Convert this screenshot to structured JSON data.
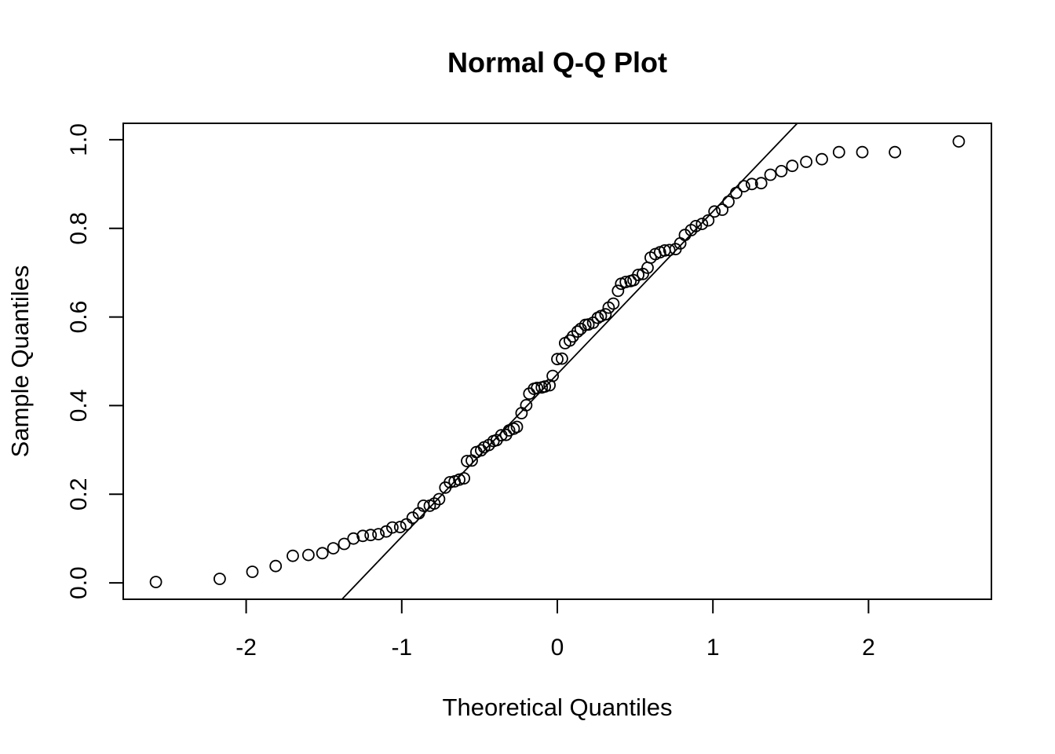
{
  "chart_data": {
    "type": "scatter",
    "title": "Normal Q-Q Plot",
    "xlabel": "Theoretical Quantiles",
    "ylabel": "Sample Quantiles",
    "xlim": [
      -2.79,
      2.79
    ],
    "ylim": [
      -0.037,
      1.037
    ],
    "x_ticks": [
      -2,
      -1,
      0,
      1,
      2
    ],
    "x_tick_labels": [
      "-2",
      "-1",
      "0",
      "1",
      "2"
    ],
    "y_ticks": [
      0.0,
      0.2,
      0.4,
      0.6,
      0.8,
      1.0
    ],
    "y_tick_labels": [
      "0.0",
      "0.2",
      "0.4",
      "0.6",
      "0.8",
      "1.0"
    ],
    "grid": false,
    "reference_line": {
      "intercept": 0.471,
      "slope": 0.367
    },
    "marker": "open-circle",
    "color": "#000000",
    "points": [
      [
        -2.58,
        0.002
      ],
      [
        -2.17,
        0.009
      ],
      [
        -1.96,
        0.025
      ],
      [
        -1.81,
        0.038
      ],
      [
        -1.7,
        0.061
      ],
      [
        -1.6,
        0.063
      ],
      [
        -1.51,
        0.067
      ],
      [
        -1.44,
        0.078
      ],
      [
        -1.37,
        0.088
      ],
      [
        -1.31,
        0.1
      ],
      [
        -1.25,
        0.106
      ],
      [
        -1.2,
        0.108
      ],
      [
        -1.15,
        0.11
      ],
      [
        -1.1,
        0.116
      ],
      [
        -1.06,
        0.125
      ],
      [
        -1.01,
        0.126
      ],
      [
        -0.97,
        0.132
      ],
      [
        -0.93,
        0.147
      ],
      [
        -0.89,
        0.157
      ],
      [
        -0.86,
        0.174
      ],
      [
        -0.82,
        0.174
      ],
      [
        -0.79,
        0.179
      ],
      [
        -0.76,
        0.189
      ],
      [
        -0.72,
        0.215
      ],
      [
        -0.69,
        0.227
      ],
      [
        -0.66,
        0.229
      ],
      [
        -0.63,
        0.233
      ],
      [
        -0.6,
        0.236
      ],
      [
        -0.58,
        0.275
      ],
      [
        -0.55,
        0.276
      ],
      [
        -0.52,
        0.295
      ],
      [
        -0.49,
        0.299
      ],
      [
        -0.47,
        0.306
      ],
      [
        -0.44,
        0.311
      ],
      [
        -0.41,
        0.32
      ],
      [
        -0.39,
        0.322
      ],
      [
        -0.36,
        0.333
      ],
      [
        -0.33,
        0.334
      ],
      [
        -0.31,
        0.344
      ],
      [
        -0.28,
        0.348
      ],
      [
        -0.26,
        0.352
      ],
      [
        -0.23,
        0.383
      ],
      [
        -0.2,
        0.401
      ],
      [
        -0.18,
        0.427
      ],
      [
        -0.15,
        0.438
      ],
      [
        -0.13,
        0.44
      ],
      [
        -0.1,
        0.441
      ],
      [
        -0.08,
        0.443
      ],
      [
        -0.05,
        0.446
      ],
      [
        -0.03,
        0.467
      ],
      [
        0.0,
        0.505
      ],
      [
        0.03,
        0.506
      ],
      [
        0.05,
        0.541
      ],
      [
        0.08,
        0.547
      ],
      [
        0.1,
        0.556
      ],
      [
        0.13,
        0.567
      ],
      [
        0.15,
        0.573
      ],
      [
        0.18,
        0.582
      ],
      [
        0.2,
        0.583
      ],
      [
        0.23,
        0.587
      ],
      [
        0.26,
        0.598
      ],
      [
        0.28,
        0.602
      ],
      [
        0.31,
        0.606
      ],
      [
        0.33,
        0.621
      ],
      [
        0.36,
        0.63
      ],
      [
        0.39,
        0.659
      ],
      [
        0.41,
        0.675
      ],
      [
        0.44,
        0.679
      ],
      [
        0.47,
        0.681
      ],
      [
        0.49,
        0.683
      ],
      [
        0.52,
        0.695
      ],
      [
        0.55,
        0.697
      ],
      [
        0.58,
        0.711
      ],
      [
        0.6,
        0.734
      ],
      [
        0.63,
        0.742
      ],
      [
        0.66,
        0.746
      ],
      [
        0.69,
        0.75
      ],
      [
        0.72,
        0.751
      ],
      [
        0.76,
        0.753
      ],
      [
        0.79,
        0.766
      ],
      [
        0.82,
        0.785
      ],
      [
        0.86,
        0.796
      ],
      [
        0.89,
        0.805
      ],
      [
        0.93,
        0.81
      ],
      [
        0.97,
        0.818
      ],
      [
        1.01,
        0.838
      ],
      [
        1.06,
        0.842
      ],
      [
        1.1,
        0.86
      ],
      [
        1.15,
        0.88
      ],
      [
        1.2,
        0.895
      ],
      [
        1.25,
        0.9
      ],
      [
        1.31,
        0.902
      ],
      [
        1.37,
        0.921
      ],
      [
        1.44,
        0.929
      ],
      [
        1.51,
        0.941
      ],
      [
        1.6,
        0.95
      ],
      [
        1.7,
        0.956
      ],
      [
        1.81,
        0.972
      ],
      [
        1.96,
        0.972
      ],
      [
        2.17,
        0.972
      ],
      [
        2.58,
        0.996
      ]
    ]
  }
}
